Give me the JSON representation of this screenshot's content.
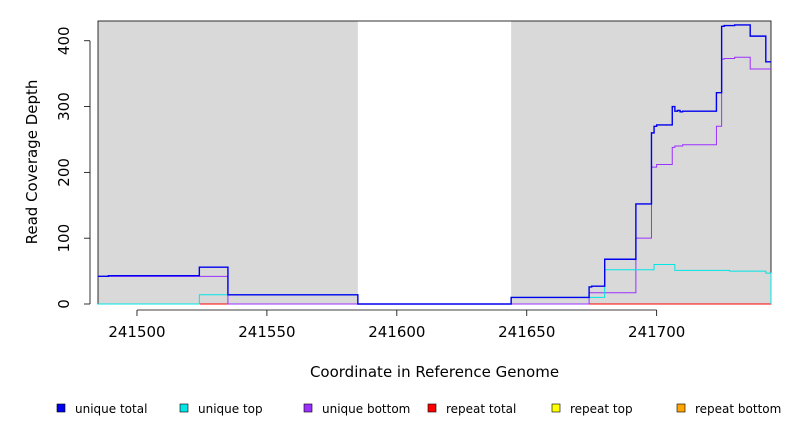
{
  "chart_data": {
    "type": "line",
    "title": "",
    "xlabel": "Coordinate in Reference Genome",
    "ylabel": "Read Coverage Depth",
    "xlim": [
      241485,
      241744
    ],
    "ylim": [
      0,
      430
    ],
    "x_ticks": [
      241500,
      241550,
      241600,
      241650,
      241700
    ],
    "x_tick_labels": [
      "241500",
      "241550",
      "241600",
      "241650",
      "241700"
    ],
    "y_ticks": [
      0,
      100,
      200,
      300,
      400
    ],
    "y_tick_labels": [
      "0",
      "100",
      "200",
      "300",
      "400"
    ],
    "shaded_regions": [
      [
        241485,
        241585
      ],
      [
        241644,
        241744
      ]
    ],
    "shade_color": "#d9d9d9",
    "legend_position": "bottom",
    "series": [
      {
        "name": "unique total",
        "color": "#0000ee",
        "x": [
          241485,
          241489,
          241524,
          241535,
          241585,
          241644,
          241674,
          241675,
          241680,
          241692,
          241698,
          241699,
          241700,
          241706,
          241707,
          241708,
          241709,
          241710,
          241723,
          241725,
          241726,
          241730,
          241736,
          241742,
          241744
        ],
        "y": [
          42,
          43,
          56,
          14,
          0,
          10,
          26,
          27,
          68,
          152,
          260,
          270,
          272,
          300,
          293,
          294,
          292,
          293,
          321,
          422,
          423,
          424,
          407,
          368,
          368
        ]
      },
      {
        "name": "unique top",
        "color": "#00e5e5",
        "x": [
          241485,
          241524,
          241535,
          241585,
          241644,
          241674,
          241680,
          241699,
          241705,
          241707,
          241710,
          241728,
          241742,
          241744
        ],
        "y": [
          0,
          14,
          14,
          0,
          10,
          10,
          52,
          60,
          60,
          51,
          51,
          50,
          47,
          0
        ]
      },
      {
        "name": "unique bottom",
        "color": "#9b30ff",
        "x": [
          241485,
          241524,
          241535,
          241585,
          241644,
          241674,
          241680,
          241692,
          241698,
          241700,
          241706,
          241707,
          241710,
          241723,
          241725,
          241726,
          241730,
          241736,
          241744
        ],
        "y": [
          42,
          42,
          0,
          0,
          0,
          17,
          17,
          100,
          208,
          212,
          238,
          240,
          242,
          270,
          372,
          373,
          375,
          357,
          357
        ]
      },
      {
        "name": "repeat total",
        "color": "#ff0000",
        "x": [
          241485,
          241744
        ],
        "y": [
          0,
          0
        ]
      },
      {
        "name": "repeat top",
        "color": "#ffff00",
        "x": [
          241485,
          241744
        ],
        "y": [
          0,
          0
        ]
      },
      {
        "name": "repeat bottom",
        "color": "#ffa500",
        "x": [
          241485,
          241744
        ],
        "y": [
          0,
          0
        ]
      }
    ]
  }
}
